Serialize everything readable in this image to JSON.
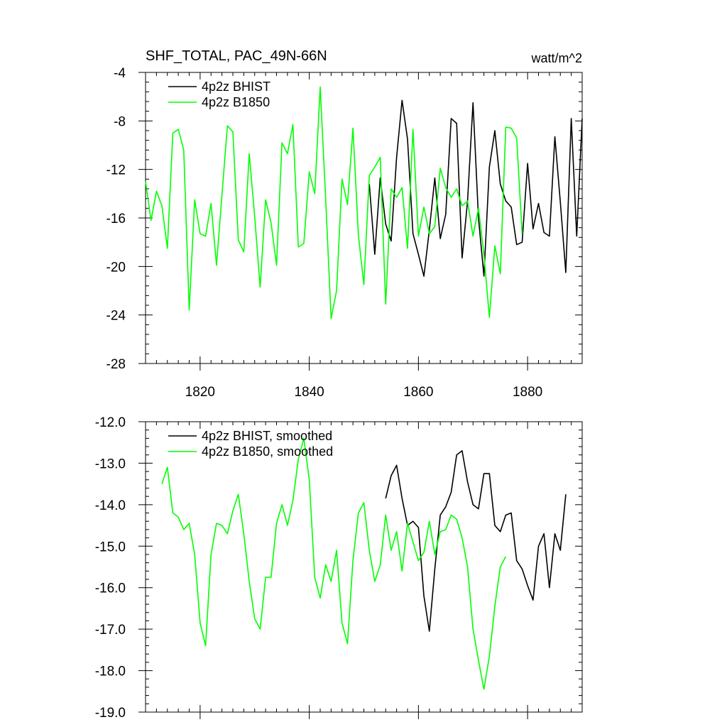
{
  "header": {
    "title": "SHF_TOTAL, PAC_49N-66N",
    "units": "watt/m^2"
  },
  "colors": {
    "bhist": "#000000",
    "b1850": "#00ff00"
  },
  "chart_data": [
    {
      "type": "line",
      "title": "SHF_TOTAL, PAC_49N-66N",
      "xlabel": "",
      "ylabel": "",
      "units": "watt/m^2",
      "xlim": [
        1810,
        1890
      ],
      "ylim": [
        -28,
        -4
      ],
      "yticks": [
        -4,
        -8,
        -12,
        -16,
        -20,
        -24,
        -28
      ],
      "ytick_labels": [
        "-4",
        "-8",
        "-12",
        "-16",
        "-20",
        "-24",
        "-28"
      ],
      "xticks": [
        1820,
        1840,
        1860,
        1880
      ],
      "xtick_labels": [
        "1820",
        "1840",
        "1860",
        "1880"
      ],
      "grid": false,
      "legend": "top-left",
      "series": [
        {
          "name": "4p2z BHIST",
          "color": "#000000",
          "x": [
            1851,
            1852,
            1853,
            1854,
            1855,
            1856,
            1857,
            1858,
            1859,
            1860,
            1861,
            1862,
            1863,
            1864,
            1865,
            1866,
            1867,
            1868,
            1869,
            1870,
            1871,
            1872,
            1873,
            1874,
            1875,
            1876,
            1877,
            1878,
            1879,
            1880,
            1881,
            1882,
            1883,
            1884,
            1885,
            1886,
            1887,
            1888,
            1889,
            1890
          ],
          "values": [
            -13.2,
            -19.0,
            -12.7,
            -16.5,
            -17.9,
            -11.0,
            -6.3,
            -9.5,
            -17.3,
            -19.0,
            -20.8,
            -17.0,
            -12.7,
            -17.7,
            -15.7,
            -7.8,
            -8.2,
            -19.3,
            -14.6,
            -6.5,
            -16.0,
            -20.8,
            -11.8,
            -8.8,
            -13.2,
            -14.6,
            -15.1,
            -18.2,
            -18.0,
            -11.5,
            -16.9,
            -14.8,
            -17.2,
            -17.5,
            -9.3,
            -14.7,
            -20.5,
            -7.8,
            -17.5,
            -7.8
          ]
        },
        {
          "name": "4p2z B1850",
          "color": "#00ff00",
          "x": [
            1810,
            1811,
            1812,
            1813,
            1814,
            1815,
            1816,
            1817,
            1818,
            1819,
            1820,
            1821,
            1822,
            1823,
            1824,
            1825,
            1826,
            1827,
            1828,
            1829,
            1830,
            1831,
            1832,
            1833,
            1834,
            1835,
            1836,
            1837,
            1838,
            1839,
            1840,
            1841,
            1842,
            1843,
            1844,
            1845,
            1846,
            1847,
            1848,
            1849,
            1850,
            1851,
            1852,
            1853,
            1854,
            1855,
            1856,
            1857,
            1858,
            1859,
            1860,
            1861,
            1862,
            1863,
            1864,
            1865,
            1866,
            1867,
            1868,
            1869,
            1870,
            1871,
            1872,
            1873,
            1874,
            1875,
            1876,
            1877,
            1878,
            1879,
            1880
          ],
          "values": [
            -13.0,
            -16.2,
            -13.8,
            -15.0,
            -18.5,
            -9.0,
            -8.7,
            -10.4,
            -23.6,
            -14.5,
            -17.3,
            -17.5,
            -14.8,
            -19.9,
            -14.1,
            -8.4,
            -8.9,
            -17.8,
            -18.8,
            -10.7,
            -15.9,
            -21.7,
            -14.5,
            -16.4,
            -19.9,
            -9.8,
            -10.7,
            -8.3,
            -18.4,
            -18.1,
            -12.2,
            -14.0,
            -5.2,
            -14.4,
            -24.3,
            -22.0,
            -12.8,
            -14.9,
            -8.6,
            -17.4,
            -21.5,
            -12.5,
            -11.8,
            -11.0,
            -23.1,
            -13.6,
            -14.3,
            -13.5,
            -18.5,
            -8.7,
            -17.5,
            -15.1,
            -17.3,
            -16.7,
            -11.9,
            -13.5,
            -14.3,
            -13.6,
            -15.0,
            -14.6,
            -17.5,
            -15.2,
            -19.0,
            -24.2,
            -18.3,
            -20.6,
            -8.5,
            -8.6,
            -9.4,
            -17.3,
            null
          ]
        }
      ]
    },
    {
      "type": "line",
      "title": "",
      "xlabel": "",
      "ylabel": "",
      "xlim": [
        1810,
        1890
      ],
      "ylim": [
        -19.0,
        -12.0
      ],
      "yticks": [
        -12.0,
        -13.0,
        -14.0,
        -15.0,
        -16.0,
        -17.0,
        -18.0,
        -19.0
      ],
      "ytick_labels": [
        "-12.0",
        "-13.0",
        "-14.0",
        "-15.0",
        "-16.0",
        "-17.0",
        "-18.0",
        "-19.0"
      ],
      "xticks": [
        1820,
        1840,
        1860,
        1880
      ],
      "grid": false,
      "legend": "top-left",
      "series": [
        {
          "name": "4p2z BHIST, smoothed",
          "color": "#000000",
          "x": [
            1854,
            1855,
            1856,
            1857,
            1858,
            1859,
            1860,
            1861,
            1862,
            1863,
            1864,
            1865,
            1866,
            1867,
            1868,
            1869,
            1870,
            1871,
            1872,
            1873,
            1874,
            1875,
            1876,
            1877,
            1878,
            1879,
            1880,
            1881,
            1882,
            1883,
            1884,
            1885,
            1886,
            1887
          ],
          "values": [
            -13.85,
            -13.3,
            -13.05,
            -13.85,
            -14.5,
            -14.4,
            -14.55,
            -16.2,
            -17.05,
            -15.55,
            -14.25,
            -14.05,
            -13.7,
            -12.8,
            -12.7,
            -13.45,
            -14.0,
            -14.1,
            -13.25,
            -13.25,
            -14.5,
            -14.65,
            -14.25,
            -14.2,
            -15.35,
            -15.55,
            -15.95,
            -16.3,
            -15.0,
            -14.7,
            -16.0,
            -14.7,
            -15.1,
            -13.75
          ]
        },
        {
          "name": "4p2z B1850, smoothed",
          "color": "#00ff00",
          "x": [
            1813,
            1814,
            1815,
            1816,
            1817,
            1818,
            1819,
            1820,
            1821,
            1822,
            1823,
            1824,
            1825,
            1826,
            1827,
            1828,
            1829,
            1830,
            1831,
            1832,
            1833,
            1834,
            1835,
            1836,
            1837,
            1838,
            1839,
            1840,
            1841,
            1842,
            1843,
            1844,
            1845,
            1846,
            1847,
            1848,
            1849,
            1850,
            1851,
            1852,
            1853,
            1854,
            1855,
            1856,
            1857,
            1858,
            1859,
            1860,
            1861,
            1862,
            1863,
            1864,
            1865,
            1866,
            1867,
            1868,
            1869,
            1870,
            1871,
            1872,
            1873,
            1874,
            1875,
            1876,
            1877
          ],
          "values": [
            -13.5,
            -13.1,
            -14.2,
            -14.3,
            -14.6,
            -14.45,
            -15.2,
            -16.85,
            -17.4,
            -15.2,
            -14.45,
            -14.5,
            -14.7,
            -14.15,
            -13.75,
            -14.7,
            -15.85,
            -16.75,
            -17.0,
            -15.75,
            -15.75,
            -14.45,
            -14.0,
            -14.5,
            -13.9,
            -12.9,
            -12.4,
            -13.4,
            -15.75,
            -16.25,
            -15.45,
            -15.85,
            -15.1,
            -16.85,
            -17.35,
            -15.35,
            -14.2,
            -13.95,
            -15.1,
            -15.85,
            -15.45,
            -14.25,
            -15.1,
            -14.65,
            -15.6,
            -14.45,
            -14.9,
            -15.35,
            -15.15,
            -14.4,
            -15.2,
            -14.65,
            -14.6,
            -14.25,
            -14.35,
            -14.8,
            -15.5,
            -17.0,
            -17.75,
            -18.45,
            -17.65,
            -16.45,
            -15.5,
            -15.25,
            null
          ]
        }
      ]
    }
  ]
}
